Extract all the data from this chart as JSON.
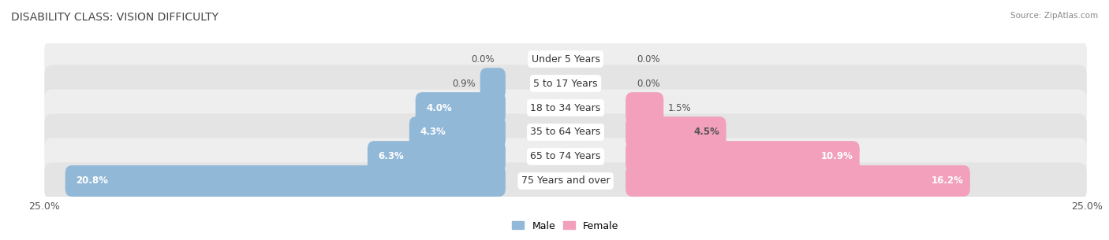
{
  "title": "DISABILITY CLASS: VISION DIFFICULTY",
  "source": "Source: ZipAtlas.com",
  "categories": [
    "Under 5 Years",
    "5 to 17 Years",
    "18 to 34 Years",
    "35 to 64 Years",
    "65 to 74 Years",
    "75 Years and over"
  ],
  "male_values": [
    0.0,
    0.9,
    4.0,
    4.3,
    6.3,
    20.8
  ],
  "female_values": [
    0.0,
    0.0,
    1.5,
    4.5,
    10.9,
    16.2
  ],
  "male_color": "#92b8d8",
  "female_color": "#f2a0bc",
  "male_color_dark": "#5b9ac8",
  "female_color_dark": "#e8609a",
  "row_bg_odd": "#eeeeee",
  "row_bg_even": "#e4e4e4",
  "max_val": 25.0,
  "label_fontsize": 8.5,
  "title_fontsize": 10,
  "axis_label_fontsize": 9,
  "legend_fontsize": 9
}
